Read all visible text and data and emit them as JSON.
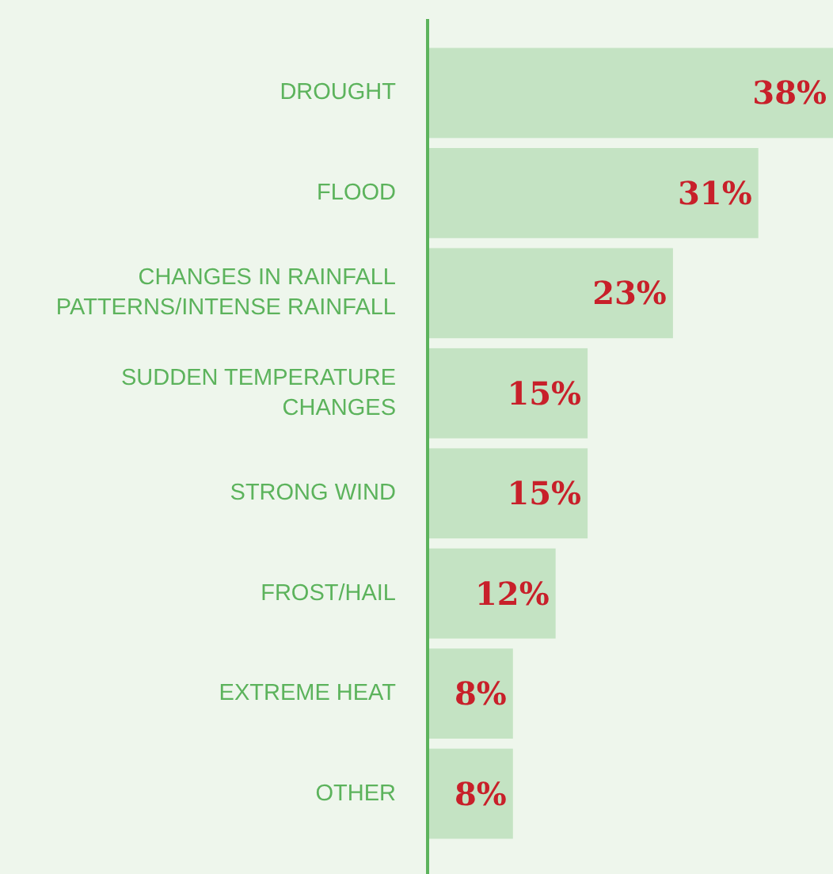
{
  "chart_data": {
    "type": "bar",
    "orientation": "horizontal",
    "categories": [
      "DROUGHT",
      "FLOOD",
      "CHANGES IN RAINFALL PATTERNS/INTENSE RAINFALL",
      "SUDDEN TEMPERATURE CHANGES",
      "STRONG WIND",
      "FROST/HAIL",
      "EXTREME HEAT",
      "OTHER"
    ],
    "values": [
      38,
      31,
      23,
      15,
      15,
      12,
      8,
      8
    ],
    "value_labels": [
      "38%",
      "31%",
      "23%",
      "15%",
      "15%",
      "12%",
      "8%",
      "8%"
    ],
    "color": "#c4e3c3"
  }
}
